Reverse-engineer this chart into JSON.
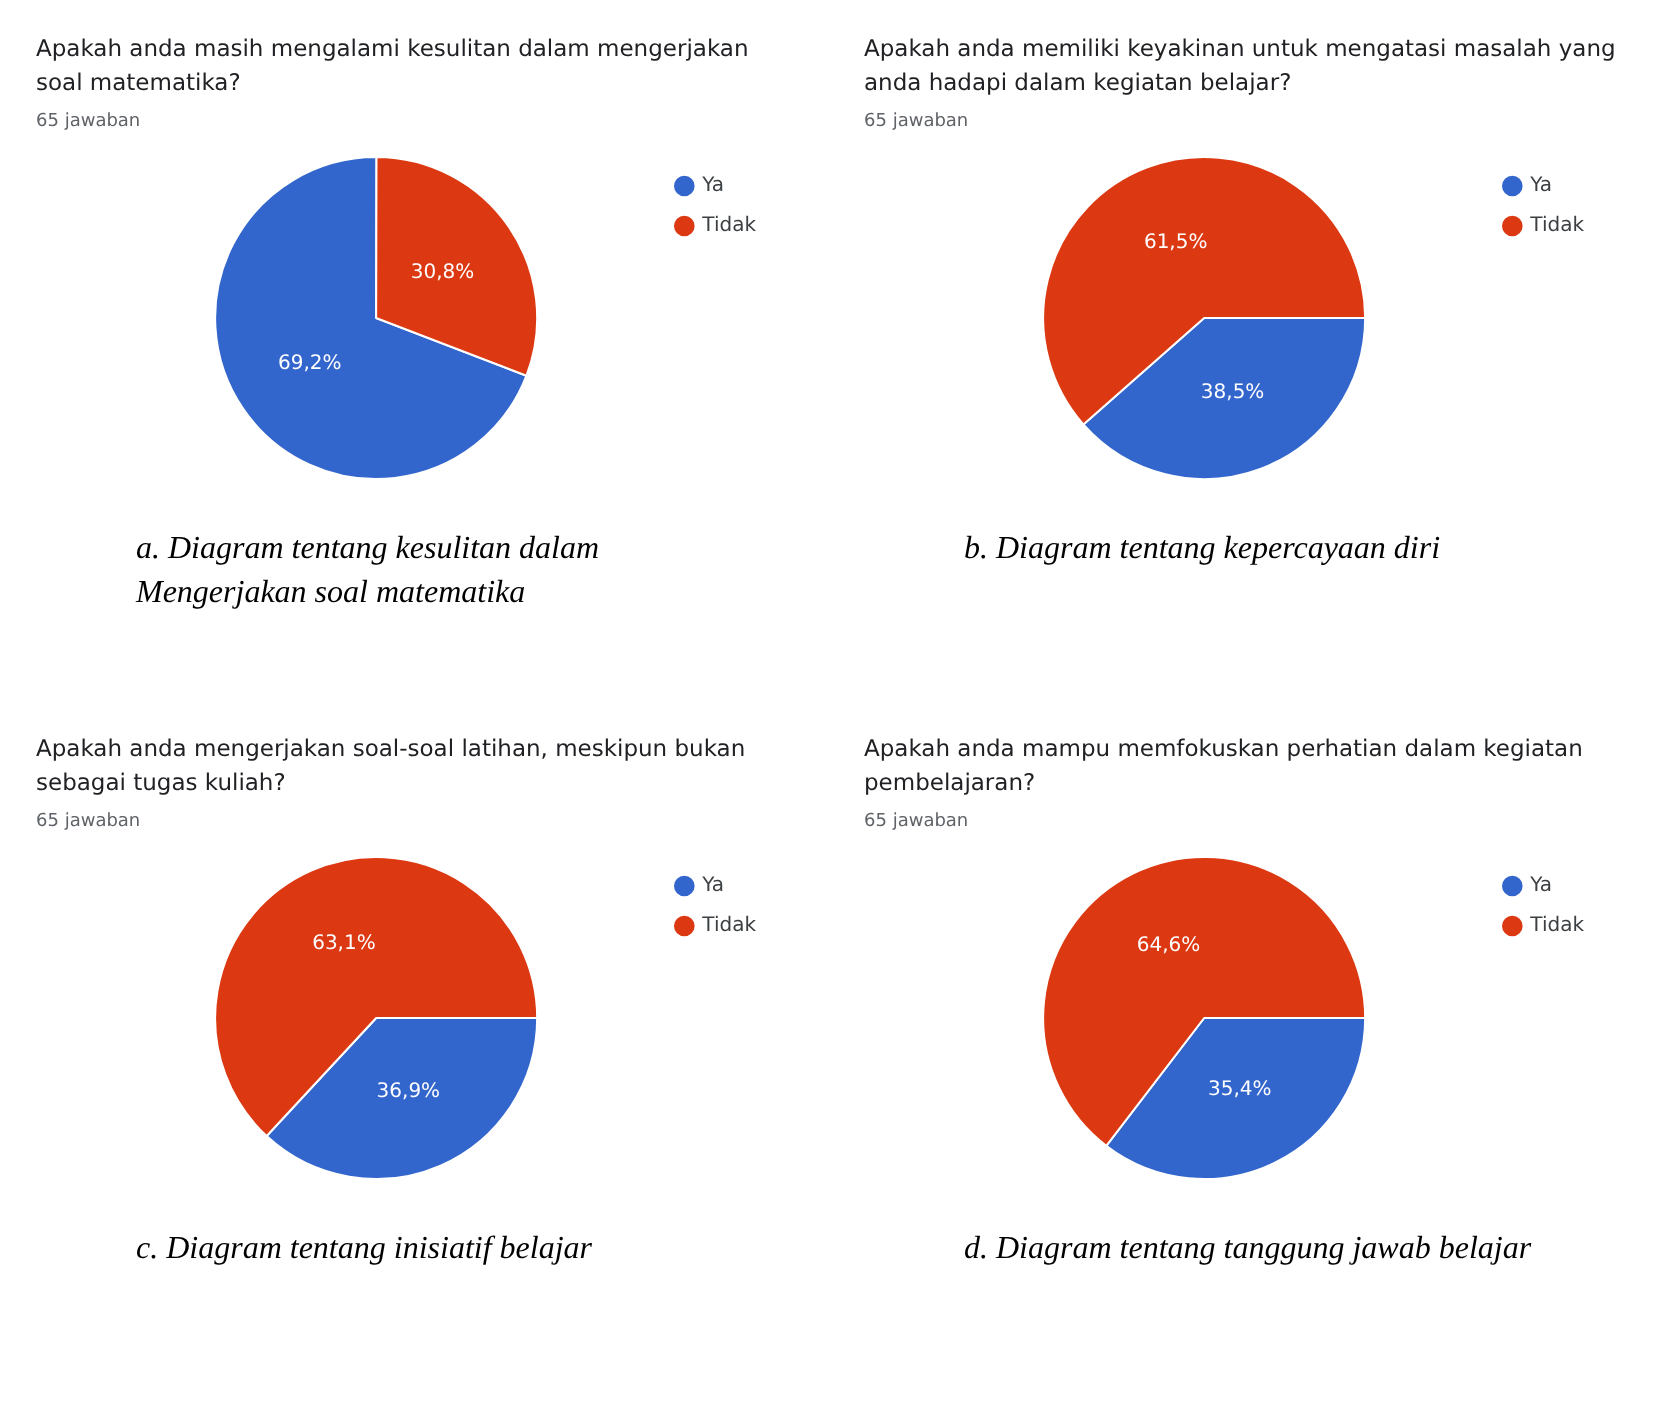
{
  "chart_data": [
    {
      "type": "pie",
      "title": "Apakah anda masih mengalami kesulitan dalam mengerjakan soal matematika?",
      "subtitle": "65 jawaban",
      "categories": [
        "Ya",
        "Tidak"
      ],
      "values": [
        69.2,
        30.8
      ],
      "colors": [
        "#3366cc",
        "#dc3912"
      ],
      "value_labels": [
        "69,2%",
        "30,8%"
      ],
      "legend": "right",
      "annotations": [
        "a.    Diagram tentang kesulitan dalam Mengerjakan soal matematika"
      ]
    },
    {
      "type": "pie",
      "title": "Apakah anda memiliki keyakinan untuk mengatasi masalah yang anda hadapi dalam kegiatan belajar?",
      "subtitle": "65 jawaban",
      "categories": [
        "Ya",
        "Tidak"
      ],
      "values": [
        38.5,
        61.5
      ],
      "colors": [
        "#3366cc",
        "#dc3912"
      ],
      "value_labels": [
        "38,5%",
        "61,5%"
      ],
      "legend": "right",
      "annotations": [
        "b.    Diagram tentang kepercayaan diri"
      ]
    },
    {
      "type": "pie",
      "title": "Apakah anda mengerjakan soal-soal latihan, meskipun bukan sebagai tugas kuliah?",
      "subtitle": "65 jawaban",
      "categories": [
        "Ya",
        "Tidak"
      ],
      "values": [
        36.9,
        63.1
      ],
      "colors": [
        "#3366cc",
        "#dc3912"
      ],
      "value_labels": [
        "36,9%",
        "63,1%"
      ],
      "legend": "right",
      "annotations": [
        "c.    Diagram tentang inisiatif belajar"
      ]
    },
    {
      "type": "pie",
      "title": "Apakah anda mampu memfokuskan perhatian dalam kegiatan pembelajaran?",
      "subtitle": "65 jawaban",
      "categories": [
        "Ya",
        "Tidak"
      ],
      "values": [
        35.4,
        64.6
      ],
      "colors": [
        "#3366cc",
        "#dc3912"
      ],
      "value_labels": [
        "35,4%",
        "64,6%"
      ],
      "legend": "right",
      "annotations": [
        "d.    Diagram tentang tanggung jawab belajar"
      ]
    }
  ]
}
